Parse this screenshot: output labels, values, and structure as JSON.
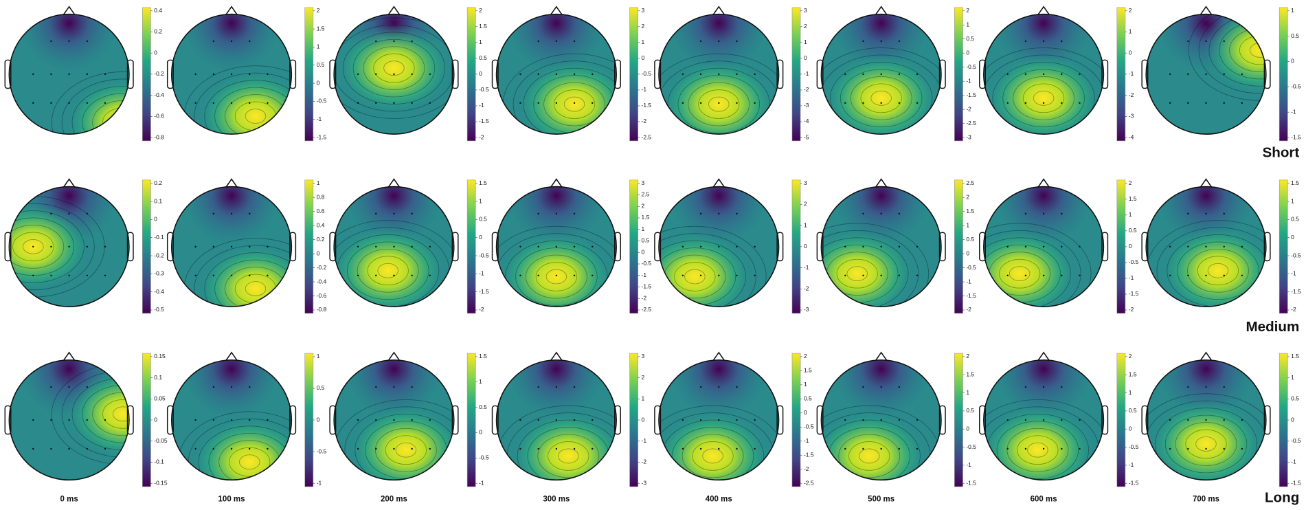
{
  "rows": [
    {
      "label": "Short",
      "colorbar_ticks": [
        [
          "0.4",
          "0.2",
          "0",
          "-0.2",
          "-0.4",
          "-0.6",
          "-0.8"
        ],
        [
          "2",
          "1.5",
          "1",
          "0.5",
          "0",
          "-0.5",
          "-1",
          "-1.5"
        ],
        [
          "2",
          "1.5",
          "1",
          "0.5",
          "0",
          "-0.5",
          "-1",
          "-1.5",
          "-2"
        ],
        [
          "3",
          "2",
          "1",
          "0",
          "-0.5",
          "-1",
          "-1.5",
          "-2",
          "-2.5"
        ],
        [
          "3",
          "2",
          "1",
          "0",
          "-1",
          "-2",
          "-3",
          "-4",
          "-5"
        ],
        [
          "2",
          "1",
          "0.5",
          "0",
          "-0.5",
          "-1",
          "-1.5",
          "-2",
          "-2.5",
          "-3"
        ],
        [
          "2",
          "1",
          "0",
          "-1",
          "-2",
          "-3",
          "-4"
        ],
        [
          "1",
          "0.5",
          "0",
          "-0.5",
          "-1",
          "-1.5"
        ]
      ]
    },
    {
      "label": "Medium",
      "colorbar_ticks": [
        [
          "0.2",
          "0.1",
          "0",
          "-0.1",
          "-0.2",
          "-0.3",
          "-0.4",
          "-0.5"
        ],
        [
          "1",
          "0.8",
          "0.6",
          "0.4",
          "0.2",
          "0",
          "-0.2",
          "-0.4",
          "-0.6",
          "-0.8"
        ],
        [
          "1.5",
          "1",
          "0.5",
          "0",
          "-0.5",
          "-1",
          "-1.5",
          "-2"
        ],
        [
          "3",
          "2.5",
          "2",
          "1.5",
          "1",
          "0.5",
          "0",
          "-0.5",
          "-1",
          "-1.5",
          "-2",
          "-2.5"
        ],
        [
          "3",
          "2",
          "1",
          "0",
          "-1",
          "-2",
          "-3"
        ],
        [
          "2.5",
          "2",
          "1.5",
          "1",
          "0.5",
          "0",
          "-0.5",
          "-1",
          "-1.5",
          "-2"
        ],
        [
          "2",
          "1.5",
          "1",
          "0.5",
          "0",
          "-0.5",
          "-1",
          "-1.5",
          "-2"
        ],
        [
          "1.5",
          "1",
          "0.5",
          "0",
          "-0.5",
          "-1",
          "-1.5",
          "-2"
        ]
      ]
    },
    {
      "label": "Long",
      "colorbar_ticks": [
        [
          "0.15",
          "0.1",
          "0.05",
          "0",
          "-0.05",
          "-0.1",
          "-0.15"
        ],
        [
          "1",
          "0.5",
          "0",
          "-0.5",
          "-1"
        ],
        [
          "1.5",
          "1",
          "0.5",
          "0",
          "-0.5",
          "-1"
        ],
        [
          "3",
          "2",
          "1",
          "0",
          "-1",
          "-2",
          "-3"
        ],
        [
          "2",
          "1.5",
          "1",
          "0.5",
          "0",
          "-0.5",
          "-1",
          "-1.5",
          "-2",
          "-2.5"
        ],
        [
          "2",
          "1.5",
          "1",
          "0.5",
          "0",
          "-0.5",
          "-1",
          "-1.5"
        ],
        [
          "2",
          "1.5",
          "1",
          "0.5",
          "0",
          "-0.5",
          "-1",
          "-1.5"
        ],
        [
          "1.5",
          "1",
          "0.5",
          "0",
          "-0.5",
          "-1",
          "-1.5"
        ]
      ]
    }
  ],
  "time_labels": [
    "0 ms",
    "100 ms",
    "200 ms",
    "300 ms",
    "400 ms",
    "500 ms",
    "600 ms",
    "700 ms"
  ]
}
